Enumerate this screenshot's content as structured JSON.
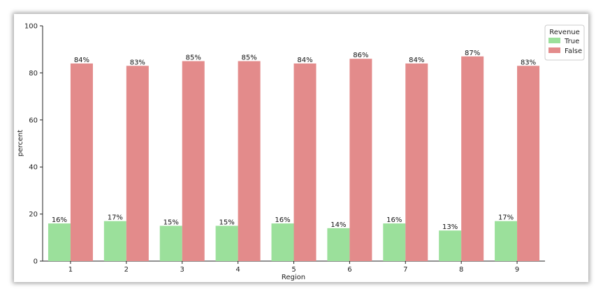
{
  "chart_data": {
    "type": "bar",
    "categories": [
      "1",
      "2",
      "3",
      "4",
      "5",
      "6",
      "7",
      "8",
      "9"
    ],
    "series": [
      {
        "name": "True",
        "color": "#9be09b",
        "values": [
          16,
          17,
          15,
          15,
          16,
          14,
          16,
          13,
          17
        ],
        "labels": [
          "16%",
          "17%",
          "15%",
          "15%",
          "16%",
          "14%",
          "16%",
          "13%",
          "17%"
        ]
      },
      {
        "name": "False",
        "color": "#e38b8b",
        "values": [
          84,
          83,
          85,
          85,
          84,
          86,
          84,
          87,
          83
        ],
        "labels": [
          "84%",
          "83%",
          "85%",
          "85%",
          "84%",
          "86%",
          "84%",
          "87%",
          "83%"
        ]
      }
    ],
    "xlabel": "Region",
    "ylabel": "percent",
    "ylim": [
      0,
      100
    ],
    "yticks": [
      "0",
      "20",
      "40",
      "60",
      "80",
      "100"
    ],
    "legend": {
      "title": "Revenue",
      "placement": "top-right"
    },
    "grid": false
  }
}
